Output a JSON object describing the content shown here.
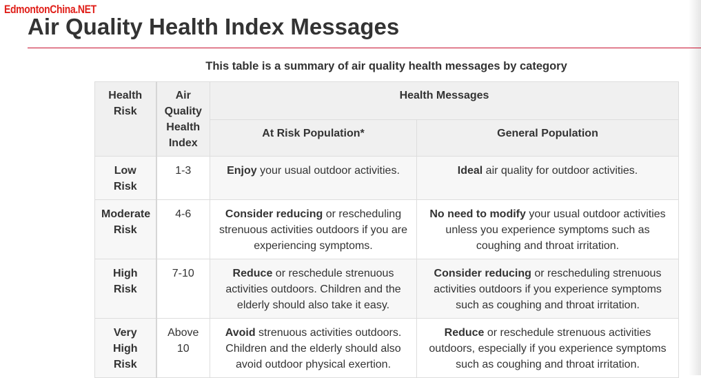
{
  "watermark": "EdmontonChina.NET",
  "page": {
    "title": "Air Quality Health Index Messages",
    "caption": "This table is a summary of air quality health messages by category"
  },
  "table": {
    "headers": {
      "health_risk": "Health Risk",
      "aqhi": "Air Quality Health Index",
      "health_messages": "Health Messages",
      "at_risk": "At Risk Population*",
      "general": "General Population"
    },
    "rows": [
      {
        "risk": "Low Risk",
        "index": "1-3",
        "at_risk_bold": "Enjoy",
        "at_risk_rest": " your usual outdoor activities.",
        "general_bold": "Ideal",
        "general_rest": " air quality for outdoor activities."
      },
      {
        "risk": "Moderate Risk",
        "index": "4-6",
        "at_risk_bold": "Consider reducing",
        "at_risk_rest": " or rescheduling strenuous activities outdoors if you are experiencing symptoms.",
        "general_bold": "No need to modify",
        "general_rest": " your usual outdoor activities unless you experience symptoms such as coughing and throat irritation."
      },
      {
        "risk": "High Risk",
        "index": "7-10",
        "at_risk_bold": "Reduce",
        "at_risk_rest": " or reschedule strenuous activities outdoors. Children and the elderly should also take it easy.",
        "general_bold": "Consider reducing",
        "general_rest": " or rescheduling strenuous activities outdoors if you experience symptoms such as coughing and throat irritation."
      },
      {
        "risk": "Very High Risk",
        "index": "Above 10",
        "at_risk_bold": "Avoid",
        "at_risk_rest": " strenuous activities outdoors. Children and the elderly should also avoid outdoor physical exertion.",
        "general_bold": "Reduce",
        "general_rest": " or reschedule strenuous activities outdoors, especially if you experience symptoms such as coughing and throat irritation."
      }
    ]
  }
}
